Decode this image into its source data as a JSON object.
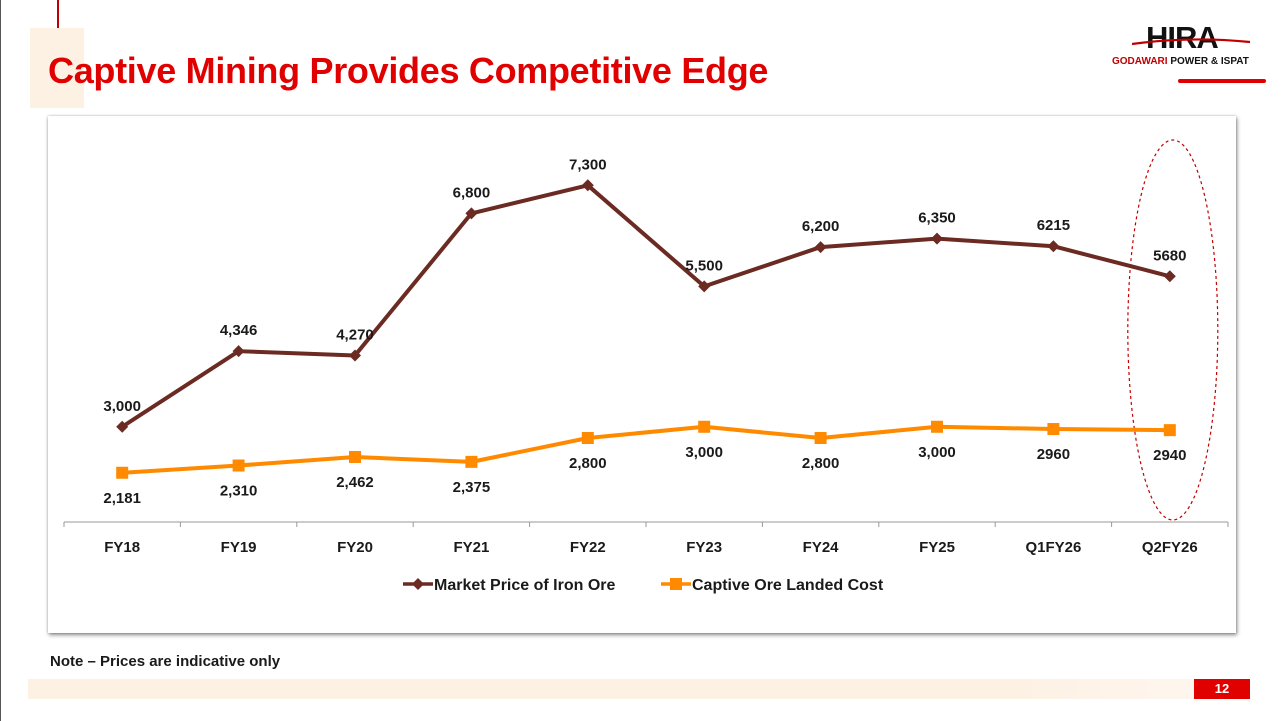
{
  "slide": {
    "title": "Captive Mining Provides Competitive Edge",
    "note": "Note – Prices are indicative only",
    "page_number": "12"
  },
  "logo": {
    "word": "HIRA",
    "sub_red": "GODAWARI",
    "sub_black": "POWER & ISPAT"
  },
  "colors": {
    "title": "#e00000",
    "market_series": "#6b2a22",
    "captive_series": "#ff8a00",
    "highlight": "#c00000"
  },
  "chart_data": {
    "type": "line",
    "title": "",
    "xlabel": "",
    "ylabel": "",
    "ylim": [
      1500,
      8000
    ],
    "categories": [
      "FY18",
      "FY19",
      "FY20",
      "FY21",
      "FY22",
      "FY23",
      "FY24",
      "FY25",
      "Q1FY26",
      "Q2FY26"
    ],
    "series": [
      {
        "name": "Market Price of Iron Ore",
        "marker": "diamond",
        "values": [
          3000,
          4346,
          4270,
          6800,
          7300,
          5500,
          6200,
          6350,
          6215,
          5680
        ],
        "labels": [
          "3,000",
          "4,346",
          "4,270",
          "6,800",
          "7,300",
          "5,500",
          "6,200",
          "6,350",
          "6215",
          "5680"
        ]
      },
      {
        "name": "Captive Ore Landed Cost",
        "marker": "square",
        "values": [
          2181,
          2310,
          2462,
          2375,
          2800,
          3000,
          2800,
          3000,
          2960,
          2940
        ],
        "labels": [
          "2,181",
          "2,310",
          "2,462",
          "2,375",
          "2,800",
          "3,000",
          "2,800",
          "3,000",
          "2960",
          "2940"
        ]
      }
    ],
    "legend_position": "bottom",
    "highlight_category": "Q2FY26"
  }
}
